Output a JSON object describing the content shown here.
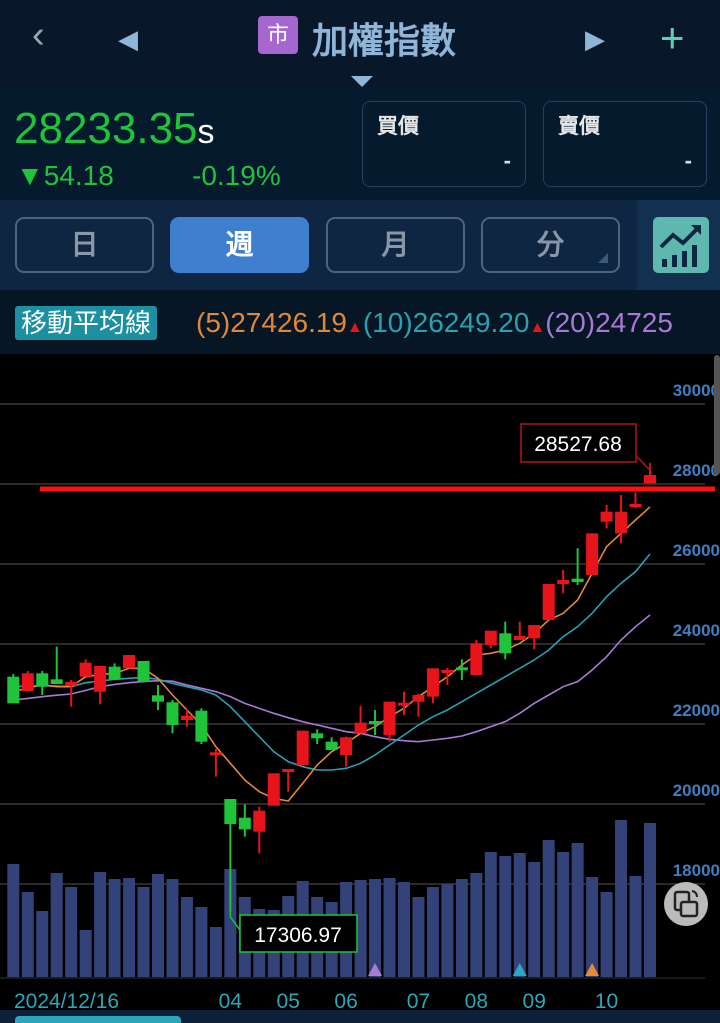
{
  "header": {
    "title": "加權指數",
    "market_badge": "市",
    "back_icon": "chevron-left",
    "prev_icon": "triangle-left",
    "next_icon": "triangle-right",
    "add_icon": "plus"
  },
  "quote": {
    "price": "28233.35",
    "price_suffix": "s",
    "change": "▼54.18",
    "change_pct": "-0.19%",
    "bid_label": "買價",
    "bid_value": "-",
    "ask_label": "賣價",
    "ask_value": "-"
  },
  "tabs": [
    {
      "label": "日",
      "active": false
    },
    {
      "label": "週",
      "active": true
    },
    {
      "label": "月",
      "active": false
    },
    {
      "label": "分",
      "active": false
    }
  ],
  "ma_bar": {
    "label": "移動平均線",
    "ma5": "(5)27426.19",
    "ma10": "(10)26249.20",
    "ma20": "(20)24725",
    "arrow": "▲"
  },
  "colors": {
    "up": "#e8141c",
    "down": "#1fc43a",
    "ma5": "#e0883a",
    "ma10": "#2aa0b0",
    "ma20": "#a77ad6",
    "volume": "#34427a",
    "axis_label": "#3f7fbf"
  },
  "chart_data": {
    "type": "candlestick",
    "ylim": [
      16300,
      30400
    ],
    "yticks": [
      "30000",
      "28000",
      "26000",
      "24000",
      "22000",
      "20000",
      "18000"
    ],
    "x_labels": [
      {
        "index": 0,
        "label": "2024/12/16"
      },
      {
        "index": 15,
        "label": "04"
      },
      {
        "index": 19,
        "label": "05"
      },
      {
        "index": 23,
        "label": "06"
      },
      {
        "index": 28,
        "label": "07"
      },
      {
        "index": 32,
        "label": "08"
      },
      {
        "index": 36,
        "label": "09"
      },
      {
        "index": 41,
        "label": "10"
      }
    ],
    "ohlc": [
      [
        23183,
        23250,
        22517,
        22517
      ],
      [
        22825,
        23325,
        22825,
        23267
      ],
      [
        23267,
        23325,
        22725,
        22933
      ],
      [
        23117,
        23933,
        23000,
        23000
      ],
      [
        22958,
        23100,
        22433,
        23050
      ],
      [
        23183,
        23617,
        23183,
        23533
      ],
      [
        22808,
        23450,
        22492,
        23450
      ],
      [
        23433,
        23517,
        23117,
        23117
      ],
      [
        23392,
        23725,
        23392,
        23725
      ],
      [
        23575,
        23575,
        23058,
        23058
      ],
      [
        22717,
        22975,
        22350,
        22558
      ],
      [
        22542,
        22600,
        21767,
        21975
      ],
      [
        22100,
        22367,
        21933,
        22208
      ],
      [
        22333,
        22392,
        21500,
        21558
      ],
      [
        21225,
        21375,
        20683,
        21292
      ],
      [
        20125,
        20125,
        17306.97,
        19500
      ],
      [
        19658,
        19992,
        19183,
        19367
      ],
      [
        19308,
        19933,
        18767,
        19833
      ],
      [
        19958,
        20767,
        19958,
        20767
      ],
      [
        20825,
        20875,
        20308,
        20875
      ],
      [
        20975,
        21833,
        20975,
        21833
      ],
      [
        21767,
        21867,
        21500,
        21642
      ],
      [
        21558,
        21667,
        21350,
        21350
      ],
      [
        21225,
        21683,
        20933,
        21667
      ],
      [
        21767,
        22450,
        21767,
        22033
      ],
      [
        22075,
        22350,
        21725,
        22000
      ],
      [
        21725,
        22558,
        21558,
        22558
      ],
      [
        22475,
        22808,
        22225,
        22533
      ],
      [
        22558,
        22758,
        22183,
        22725
      ],
      [
        22683,
        23392,
        22517,
        23392
      ],
      [
        23308,
        23400,
        22975,
        23350
      ],
      [
        23417,
        23617,
        23100,
        23375
      ],
      [
        23225,
        24100,
        23225,
        24017
      ],
      [
        23975,
        24333,
        23892,
        24333
      ],
      [
        24267,
        24558,
        23617,
        23767
      ],
      [
        24100,
        24558,
        24100,
        24200
      ],
      [
        24142,
        24475,
        23867,
        24475
      ],
      [
        24600,
        25500,
        24600,
        25500
      ],
      [
        25500,
        25850,
        25267,
        25600
      ],
      [
        25633,
        26392,
        25475,
        25550
      ],
      [
        25725,
        26767,
        25725,
        26767
      ],
      [
        27058,
        27475,
        26892,
        27308
      ],
      [
        26767,
        27725,
        26517,
        27308
      ],
      [
        27433,
        27792,
        27392,
        27500
      ],
      [
        28017,
        28527.68,
        28017,
        28225
      ]
    ],
    "volume_relative": [
      113,
      85,
      66,
      104,
      90,
      47,
      105,
      98,
      99,
      90,
      103,
      98,
      80,
      70,
      50,
      108,
      80,
      68,
      67,
      81,
      96,
      80,
      75,
      95,
      97,
      98,
      99,
      95,
      80,
      90,
      93,
      98,
      104,
      125,
      121,
      124,
      115,
      137,
      125,
      134,
      100,
      85,
      157,
      101,
      154
    ],
    "ma5": [
      22808,
      22900,
      22975,
      22933,
      22933,
      23183,
      23233,
      23267,
      23392,
      23392,
      23142,
      22725,
      22350,
      21975,
      21433,
      21017,
      20600,
      20308,
      20142,
      20075,
      20517,
      20975,
      21308,
      21517,
      21767,
      21933,
      22183,
      22392,
      22683,
      22933,
      23183,
      23475,
      23725,
      23767,
      23850,
      24017,
      24267,
      24600,
      24767,
      25100,
      25767,
      26433,
      26767,
      27100,
      27426.19
    ],
    "ma10": [
      22933,
      22950,
      22958,
      22950,
      22933,
      23033,
      23075,
      23117,
      23142,
      23167,
      23117,
      23017,
      22933,
      22850,
      22725,
      22433,
      22058,
      21683,
      21308,
      21058,
      20933,
      20850,
      20850,
      20892,
      21017,
      21225,
      21475,
      21725,
      21975,
      22183,
      22350,
      22558,
      22767,
      22975,
      23183,
      23392,
      23600,
      23850,
      24183,
      24433,
      24767,
      25183,
      25517,
      25808,
      26249.2
    ],
    "ma20": [
      22600,
      22640,
      22683,
      22720,
      22750,
      22840,
      22933,
      22990,
      23033,
      23060,
      23083,
      23070,
      22975,
      22892,
      22808,
      22683,
      22517,
      22392,
      22267,
      22158,
      22058,
      21975,
      21892,
      21808,
      21767,
      21683,
      21617,
      21583,
      21558,
      21600,
      21642,
      21700,
      21808,
      21933,
      22058,
      22267,
      22517,
      22725,
      22933,
      23058,
      23350,
      23683,
      24100,
      24433,
      24725
    ],
    "high_label": "28527.68",
    "low_label": "17306.97",
    "horizontal_line": 28000,
    "markers": [
      {
        "index": 25,
        "color": "#a77ad6"
      },
      {
        "index": 35,
        "color": "#2aa7c8"
      },
      {
        "index": 40,
        "color": "#e8883a"
      }
    ]
  }
}
